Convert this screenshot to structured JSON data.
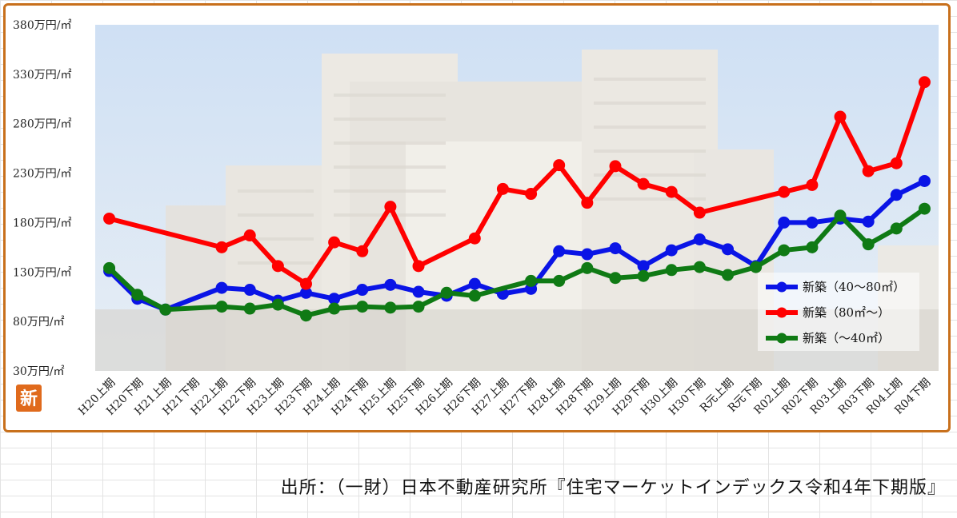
{
  "source_text": "出所：（一財）日本不動産研究所『住宅マーケットインデックス令和4年下期版』",
  "badge_char": "新",
  "colors": {
    "blue": "#0a14e6",
    "red": "#ff0000",
    "green": "#0f7a14",
    "frame": "#c8701c",
    "badge": "#e06a1c"
  },
  "chart_data": {
    "type": "line",
    "ylim": [
      30,
      380
    ],
    "yticks": [
      30,
      80,
      130,
      180,
      230,
      280,
      330,
      380
    ],
    "ytick_labels": [
      "30万円/㎡",
      "80万円/㎡",
      "130万円/㎡",
      "180万円/㎡",
      "230万円/㎡",
      "280万円/㎡",
      "330万円/㎡",
      "380万円/㎡"
    ],
    "categories": [
      "H20上期",
      "H20下期",
      "H21上期",
      "H21下期",
      "H22上期",
      "H22下期",
      "H23上期",
      "H23下期",
      "H24上期",
      "H24下期",
      "H25上期",
      "H25下期",
      "H26上期",
      "H26下期",
      "H27上期",
      "H27下期",
      "H28上期",
      "H28下期",
      "H29上期",
      "H29下期",
      "H30上期",
      "H30下期",
      "R元上期",
      "R元下期",
      "R02上期",
      "R02下期",
      "R03上期",
      "R03下期",
      "R04上期",
      "R04下期"
    ],
    "legend_position": "bottom-right",
    "series": [
      {
        "name": "新築（40～80㎡）",
        "color": "#0a14e6",
        "values": [
          131,
          103,
          92,
          null,
          114,
          112,
          101,
          109,
          103,
          112,
          117,
          110,
          106,
          118,
          108,
          113,
          151,
          148,
          154,
          136,
          152,
          163,
          153,
          136,
          180,
          180,
          184,
          181,
          208,
          222
        ]
      },
      {
        "name": "新築（80㎡～）",
        "color": "#ff0000",
        "values": [
          184,
          null,
          null,
          null,
          155,
          167,
          136,
          118,
          160,
          151,
          196,
          136,
          null,
          164,
          214,
          209,
          238,
          200,
          237,
          219,
          211,
          190,
          null,
          null,
          211,
          218,
          287,
          232,
          240,
          322
        ]
      },
      {
        "name": "新築（～40㎡）",
        "color": "#0f7a14",
        "values": [
          134,
          107,
          92,
          null,
          95,
          93,
          97,
          86,
          93,
          95,
          94,
          95,
          109,
          106,
          null,
          121,
          121,
          134,
          124,
          126,
          132,
          135,
          127,
          135,
          152,
          155,
          187,
          158,
          174,
          194
        ]
      }
    ]
  }
}
